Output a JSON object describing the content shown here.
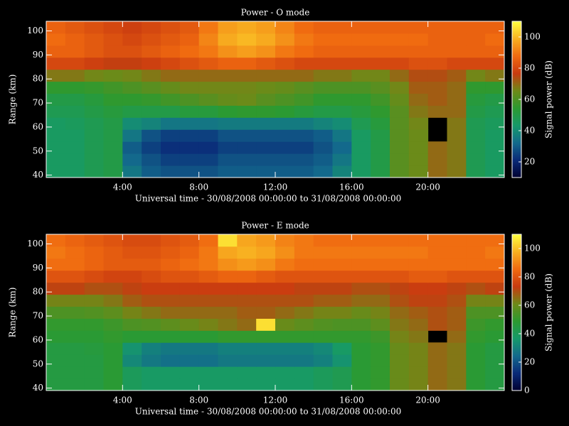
{
  "chart_data": [
    {
      "type": "heatmap",
      "title": "Power - O mode",
      "xlabel": "Universal time - 30/08/2008 00:00:00 to 31/08/2008 00:00:00",
      "ylabel": "Range (km)",
      "colorbar_label": "Signal power (dB)",
      "xlim": [
        0,
        24
      ],
      "ylim": [
        39,
        104
      ],
      "xticks": [
        {
          "value": 4,
          "label": "4:00"
        },
        {
          "value": 8,
          "label": "8:00"
        },
        {
          "value": 12,
          "label": "12:00"
        },
        {
          "value": 16,
          "label": "16:00"
        },
        {
          "value": 20,
          "label": "20:00"
        }
      ],
      "yticks": [
        40,
        50,
        60,
        70,
        80,
        90,
        100
      ],
      "clim": [
        10,
        110
      ],
      "cticks": [
        20,
        40,
        60,
        80,
        100
      ],
      "colorscale": [
        "#000030",
        "#0a2a78",
        "#136a8c",
        "#169a6a",
        "#2c9a30",
        "#6e8a18",
        "#c83a10",
        "#f06a10",
        "#f8b020",
        "#ffff40"
      ],
      "x": [
        0,
        1,
        2,
        3,
        4,
        5,
        6,
        7,
        8,
        9,
        10,
        11,
        12,
        13,
        14,
        15,
        16,
        17,
        18,
        19,
        20,
        21,
        22,
        23
      ],
      "y": [
        39,
        44,
        49,
        54,
        59,
        64,
        69,
        74,
        79,
        84,
        89,
        94,
        99
      ],
      "z": [
        [
          45,
          45,
          48,
          50,
          35,
          30,
          28,
          28,
          28,
          30,
          30,
          30,
          30,
          30,
          32,
          38,
          45,
          50,
          62,
          65,
          70,
          68,
          48,
          45
        ],
        [
          45,
          45,
          48,
          50,
          32,
          28,
          25,
          25,
          25,
          28,
          28,
          28,
          28,
          28,
          30,
          35,
          45,
          50,
          62,
          65,
          70,
          68,
          48,
          45
        ],
        [
          45,
          45,
          48,
          50,
          30,
          25,
          22,
          22,
          22,
          25,
          25,
          25,
          25,
          25,
          28,
          32,
          45,
          50,
          62,
          65,
          70,
          68,
          48,
          45
        ],
        [
          45,
          45,
          48,
          50,
          35,
          28,
          25,
          25,
          25,
          28,
          28,
          28,
          28,
          28,
          30,
          35,
          45,
          50,
          62,
          65,
          null,
          68,
          48,
          45
        ],
        [
          45,
          46,
          48,
          50,
          40,
          38,
          35,
          35,
          35,
          36,
          36,
          36,
          36,
          36,
          38,
          40,
          48,
          52,
          62,
          66,
          null,
          68,
          48,
          46
        ],
        [
          48,
          48,
          50,
          52,
          50,
          50,
          50,
          52,
          52,
          54,
          55,
          55,
          54,
          52,
          50,
          50,
          52,
          55,
          62,
          68,
          70,
          70,
          50,
          48
        ],
        [
          50,
          50,
          52,
          55,
          55,
          56,
          58,
          60,
          62,
          64,
          65,
          62,
          60,
          58,
          55,
          55,
          55,
          58,
          64,
          70,
          72,
          70,
          52,
          50
        ],
        [
          55,
          55,
          56,
          58,
          60,
          62,
          64,
          66,
          66,
          66,
          66,
          65,
          64,
          62,
          60,
          60,
          60,
          62,
          66,
          72,
          72,
          70,
          55,
          55
        ],
        [
          68,
          68,
          66,
          65,
          66,
          68,
          70,
          70,
          70,
          70,
          70,
          70,
          70,
          70,
          68,
          68,
          66,
          66,
          70,
          74,
          74,
          72,
          66,
          68
        ],
        [
          80,
          80,
          78,
          76,
          76,
          78,
          80,
          82,
          84,
          86,
          86,
          84,
          82,
          80,
          80,
          80,
          80,
          80,
          80,
          82,
          82,
          80,
          80,
          80
        ],
        [
          86,
          86,
          84,
          82,
          82,
          84,
          86,
          88,
          90,
          94,
          96,
          94,
          90,
          88,
          86,
          86,
          86,
          86,
          86,
          86,
          86,
          86,
          86,
          86
        ],
        [
          88,
          86,
          84,
          82,
          80,
          82,
          84,
          86,
          92,
          98,
          100,
          98,
          94,
          90,
          88,
          88,
          88,
          88,
          88,
          88,
          86,
          86,
          86,
          88
        ],
        [
          86,
          84,
          82,
          80,
          78,
          80,
          82,
          84,
          90,
          96,
          98,
          96,
          92,
          88,
          86,
          86,
          86,
          86,
          86,
          86,
          86,
          86,
          86,
          86
        ]
      ]
    },
    {
      "type": "heatmap",
      "title": "Power - E mode",
      "xlabel": "Universal time - 30/08/2008 00:00:00 to 31/08/2008 00:00:00",
      "ylabel": "Range (km)",
      "colorbar_label": "Signal power (dB)",
      "xlim": [
        0,
        24
      ],
      "ylim": [
        39,
        104
      ],
      "xticks": [
        {
          "value": 4,
          "label": "4:00"
        },
        {
          "value": 8,
          "label": "8:00"
        },
        {
          "value": 12,
          "label": "12:00"
        },
        {
          "value": 16,
          "label": "16:00"
        },
        {
          "value": 20,
          "label": "20:00"
        }
      ],
      "yticks": [
        40,
        50,
        60,
        70,
        80,
        90,
        100
      ],
      "clim": [
        0,
        110
      ],
      "cticks": [
        0,
        20,
        40,
        60,
        80,
        100
      ],
      "colorscale": [
        "#000030",
        "#0a2a78",
        "#136a8c",
        "#169a6a",
        "#2c9a30",
        "#6e8a18",
        "#c83a10",
        "#f06a10",
        "#f8b020",
        "#ffff40"
      ],
      "x": [
        0,
        1,
        2,
        3,
        4,
        5,
        6,
        7,
        8,
        9,
        10,
        11,
        12,
        13,
        14,
        15,
        16,
        17,
        18,
        19,
        20,
        21,
        22,
        23
      ],
      "y": [
        39,
        44,
        49,
        54,
        59,
        64,
        69,
        74,
        79,
        84,
        89,
        94,
        99
      ],
      "z": [
        [
          45,
          45,
          45,
          48,
          40,
          38,
          38,
          38,
          38,
          38,
          38,
          38,
          38,
          38,
          40,
          42,
          48,
          50,
          60,
          62,
          66,
          64,
          48,
          45
        ],
        [
          45,
          45,
          45,
          48,
          40,
          38,
          38,
          38,
          38,
          38,
          38,
          38,
          38,
          38,
          40,
          42,
          48,
          50,
          60,
          62,
          66,
          64,
          48,
          45
        ],
        [
          45,
          45,
          45,
          48,
          32,
          28,
          26,
          26,
          26,
          28,
          28,
          28,
          28,
          28,
          30,
          35,
          48,
          50,
          60,
          62,
          66,
          64,
          48,
          45
        ],
        [
          45,
          45,
          46,
          48,
          35,
          30,
          28,
          28,
          28,
          30,
          30,
          30,
          30,
          30,
          32,
          38,
          48,
          50,
          60,
          62,
          66,
          64,
          48,
          45
        ],
        [
          48,
          48,
          48,
          50,
          48,
          48,
          48,
          48,
          48,
          50,
          50,
          50,
          50,
          50,
          50,
          50,
          50,
          52,
          62,
          64,
          null,
          66,
          50,
          48
        ],
        [
          50,
          50,
          50,
          52,
          55,
          56,
          58,
          60,
          62,
          64,
          66,
          105,
          60,
          58,
          56,
          55,
          55,
          58,
          64,
          66,
          70,
          68,
          52,
          50
        ],
        [
          55,
          55,
          56,
          58,
          62,
          64,
          66,
          66,
          66,
          66,
          68,
          68,
          66,
          64,
          62,
          62,
          60,
          62,
          66,
          68,
          70,
          68,
          55,
          55
        ],
        [
          62,
          62,
          62,
          64,
          68,
          70,
          70,
          70,
          70,
          70,
          70,
          70,
          70,
          70,
          68,
          68,
          66,
          66,
          70,
          72,
          72,
          70,
          62,
          62
        ],
        [
          72,
          72,
          70,
          70,
          72,
          74,
          74,
          74,
          74,
          74,
          74,
          74,
          74,
          72,
          72,
          72,
          70,
          70,
          72,
          74,
          74,
          72,
          70,
          72
        ],
        [
          80,
          80,
          78,
          76,
          76,
          78,
          80,
          80,
          82,
          84,
          84,
          82,
          80,
          80,
          80,
          80,
          80,
          80,
          80,
          82,
          82,
          80,
          80,
          80
        ],
        [
          86,
          86,
          84,
          82,
          82,
          82,
          84,
          86,
          88,
          92,
          94,
          92,
          88,
          86,
          86,
          86,
          86,
          86,
          86,
          86,
          86,
          86,
          86,
          86
        ],
        [
          88,
          86,
          84,
          82,
          80,
          80,
          82,
          84,
          88,
          96,
          98,
          96,
          92,
          88,
          88,
          88,
          88,
          88,
          88,
          88,
          86,
          86,
          86,
          88
        ],
        [
          86,
          84,
          82,
          80,
          78,
          78,
          80,
          82,
          86,
          105,
          96,
          94,
          90,
          88,
          86,
          86,
          86,
          86,
          86,
          86,
          86,
          86,
          86,
          86
        ]
      ]
    }
  ]
}
